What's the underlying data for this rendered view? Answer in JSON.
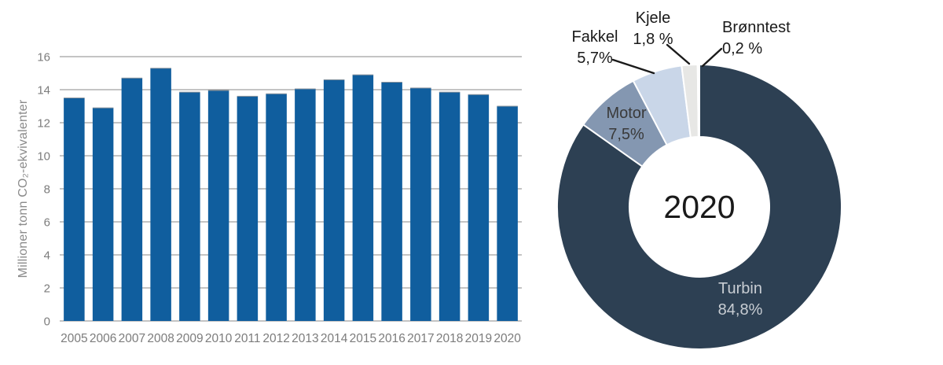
{
  "chart_data": [
    {
      "type": "bar",
      "title": "",
      "xlabel": "",
      "ylabel": "Millioner tonn CO₂-ekvivalenter",
      "categories": [
        "2005",
        "2006",
        "2007",
        "2008",
        "2009",
        "2010",
        "2011",
        "2012",
        "2013",
        "2014",
        "2015",
        "2016",
        "2017",
        "2018",
        "2019",
        "2020"
      ],
      "values": [
        13.5,
        12.9,
        14.7,
        15.3,
        13.85,
        13.95,
        13.6,
        13.75,
        14.05,
        14.6,
        14.9,
        14.45,
        14.1,
        13.85,
        13.7,
        13.0
      ],
      "ylim": [
        0,
        16
      ],
      "yticks": [
        0,
        2,
        4,
        6,
        8,
        10,
        12,
        14,
        16
      ],
      "grid": true,
      "bar_color": "#105E9E",
      "bar_edge_color": "#8D959D",
      "grid_color": "#8A8A8A",
      "tick_color": "#7C7C7C",
      "legend": "none"
    },
    {
      "type": "pie",
      "donut": true,
      "center_label": "2020",
      "start_angle": "12-oclock-clockwise",
      "slices": [
        {
          "name": "Turbin",
          "value": 84.8,
          "pct_label": "84,8%",
          "color": "#2D4053"
        },
        {
          "name": "Motor",
          "value": 7.5,
          "pct_label": "7,5%",
          "color": "#8497B1"
        },
        {
          "name": "Fakkel",
          "value": 5.7,
          "pct_label": "5,7%",
          "color": "#C9D6E8"
        },
        {
          "name": "Kjele",
          "value": 1.8,
          "pct_label": "1,8 %",
          "color": "#E7E7E5"
        },
        {
          "name": "Brønntest",
          "value": 0.2,
          "pct_label": "0,2 %",
          "color": "#F7F7F5"
        }
      ],
      "leader_line_color": "#1a1a1a"
    }
  ]
}
